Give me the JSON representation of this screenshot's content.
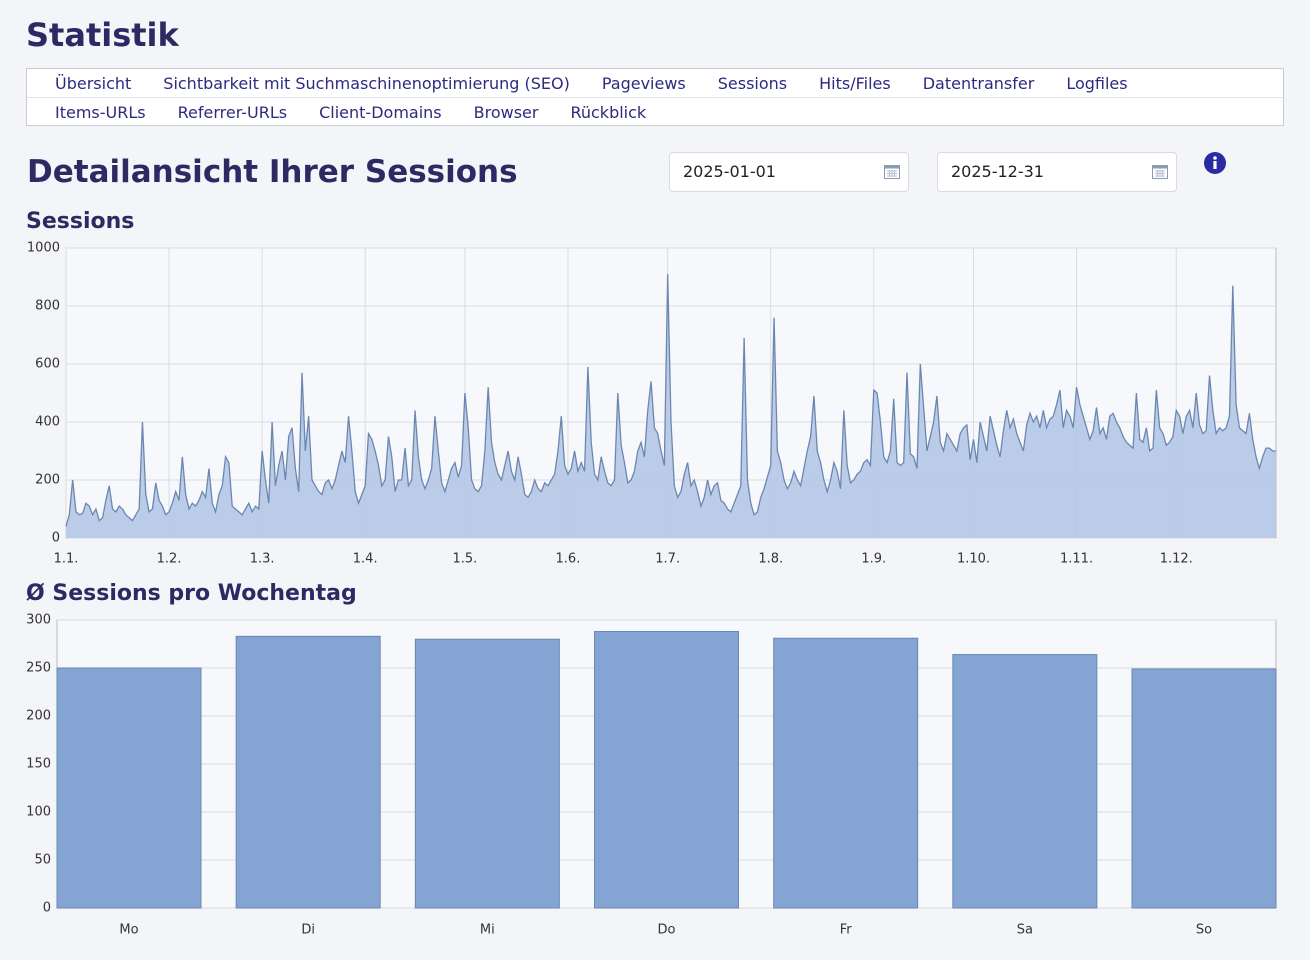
{
  "header": {
    "title": "Statistik"
  },
  "nav": {
    "rows": [
      [
        "Übersicht",
        "Sichtbarkeit mit Suchmaschinenoptimierung (SEO)",
        "Pageviews",
        "Sessions",
        "Hits/Files",
        "Datentransfer",
        "Logfiles"
      ],
      [
        "Items-URLs",
        "Referrer-URLs",
        "Client-Domains",
        "Browser",
        "Rückblick"
      ]
    ]
  },
  "heading": "Detailansicht Ihrer Sessions",
  "date_from": "2025-01-01",
  "date_to": "2025-12-31",
  "chart_data": [
    {
      "type": "area",
      "title": "Sessions",
      "color": "#b4c7e7",
      "line_color": "#6b87b0",
      "grid": true,
      "xlim": [
        1,
        365
      ],
      "xticks": [
        {
          "value": 1,
          "label": "1.1."
        },
        {
          "value": 32,
          "label": "1.2."
        },
        {
          "value": 60,
          "label": "1.3."
        },
        {
          "value": 91,
          "label": "1.4."
        },
        {
          "value": 121,
          "label": "1.5."
        },
        {
          "value": 152,
          "label": "1.6."
        },
        {
          "value": 182,
          "label": "1.7."
        },
        {
          "value": 213,
          "label": "1.8."
        },
        {
          "value": 244,
          "label": "1.9."
        },
        {
          "value": 274,
          "label": "1.10."
        },
        {
          "value": 305,
          "label": "1.11."
        },
        {
          "value": 335,
          "label": "1.12."
        }
      ],
      "ylim": [
        0,
        1000
      ],
      "yticks": [
        0,
        200,
        400,
        600,
        800,
        1000
      ],
      "x": [
        1,
        2,
        3,
        4,
        5,
        6,
        7,
        8,
        9,
        10,
        11,
        12,
        13,
        14,
        15,
        16,
        17,
        18,
        19,
        20,
        21,
        22,
        23,
        24,
        25,
        26,
        27,
        28,
        29,
        30,
        31,
        32,
        33,
        34,
        35,
        36,
        37,
        38,
        39,
        40,
        41,
        42,
        43,
        44,
        45,
        46,
        47,
        48,
        49,
        50,
        51,
        52,
        53,
        54,
        55,
        56,
        57,
        58,
        59,
        60,
        61,
        62,
        63,
        64,
        65,
        66,
        67,
        68,
        69,
        70,
        71,
        72,
        73,
        74,
        75,
        76,
        77,
        78,
        79,
        80,
        81,
        82,
        83,
        84,
        85,
        86,
        87,
        88,
        89,
        90,
        91,
        92,
        93,
        94,
        95,
        96,
        97,
        98,
        99,
        100,
        101,
        102,
        103,
        104,
        105,
        106,
        107,
        108,
        109,
        110,
        111,
        112,
        113,
        114,
        115,
        116,
        117,
        118,
        119,
        120,
        121,
        122,
        123,
        124,
        125,
        126,
        127,
        128,
        129,
        130,
        131,
        132,
        133,
        134,
        135,
        136,
        137,
        138,
        139,
        140,
        141,
        142,
        143,
        144,
        145,
        146,
        147,
        148,
        149,
        150,
        151,
        152,
        153,
        154,
        155,
        156,
        157,
        158,
        159,
        160,
        161,
        162,
        163,
        164,
        165,
        166,
        167,
        168,
        169,
        170,
        171,
        172,
        173,
        174,
        175,
        176,
        177,
        178,
        179,
        180,
        181,
        182,
        183,
        184,
        185,
        186,
        187,
        188,
        189,
        190,
        191,
        192,
        193,
        194,
        195,
        196,
        197,
        198,
        199,
        200,
        201,
        202,
        203,
        204,
        205,
        206,
        207,
        208,
        209,
        210,
        211,
        212,
        213,
        214,
        215,
        216,
        217,
        218,
        219,
        220,
        221,
        222,
        223,
        224,
        225,
        226,
        227,
        228,
        229,
        230,
        231,
        232,
        233,
        234,
        235,
        236,
        237,
        238,
        239,
        240,
        241,
        242,
        243,
        244,
        245,
        246,
        247,
        248,
        249,
        250,
        251,
        252,
        253,
        254,
        255,
        256,
        257,
        258,
        259,
        260,
        261,
        262,
        263,
        264,
        265,
        266,
        267,
        268,
        269,
        270,
        271,
        272,
        273,
        274,
        275,
        276,
        277,
        278,
        279,
        280,
        281,
        282,
        283,
        284,
        285,
        286,
        287,
        288,
        289,
        290,
        291,
        292,
        293,
        294,
        295,
        296,
        297,
        298,
        299,
        300,
        301,
        302,
        303,
        304,
        305,
        306,
        307,
        308,
        309,
        310,
        311,
        312,
        313,
        314,
        315,
        316,
        317,
        318,
        319,
        320,
        321,
        322,
        323,
        324,
        325,
        326,
        327,
        328,
        329,
        330,
        331,
        332,
        333,
        334,
        335,
        336,
        337,
        338,
        339,
        340,
        341,
        342,
        343,
        344,
        345,
        346,
        347,
        348,
        349,
        350,
        351,
        352,
        353,
        354,
        355,
        356,
        357,
        358,
        359,
        360,
        361,
        362,
        363,
        364,
        365
      ],
      "values": [
        40,
        80,
        200,
        90,
        80,
        85,
        120,
        110,
        80,
        100,
        60,
        70,
        130,
        180,
        100,
        90,
        110,
        100,
        80,
        70,
        60,
        80,
        100,
        400,
        150,
        90,
        100,
        190,
        130,
        110,
        80,
        90,
        120,
        160,
        130,
        280,
        150,
        100,
        120,
        110,
        130,
        160,
        140,
        240,
        120,
        90,
        150,
        180,
        280,
        260,
        110,
        100,
        90,
        80,
        100,
        120,
        90,
        110,
        100,
        300,
        200,
        120,
        400,
        180,
        250,
        300,
        200,
        350,
        380,
        240,
        160,
        570,
        300,
        420,
        200,
        180,
        160,
        150,
        190,
        200,
        170,
        200,
        250,
        300,
        260,
        420,
        300,
        160,
        120,
        150,
        180,
        360,
        340,
        300,
        250,
        180,
        200,
        350,
        280,
        160,
        200,
        200,
        310,
        180,
        200,
        440,
        280,
        200,
        170,
        200,
        240,
        420,
        300,
        190,
        160,
        200,
        240,
        260,
        210,
        250,
        500,
        380,
        200,
        170,
        160,
        180,
        300,
        520,
        330,
        260,
        220,
        200,
        250,
        300,
        230,
        200,
        280,
        220,
        150,
        140,
        160,
        200,
        170,
        160,
        190,
        180,
        200,
        220,
        300,
        420,
        250,
        220,
        240,
        300,
        230,
        260,
        230,
        590,
        330,
        220,
        200,
        280,
        230,
        190,
        180,
        200,
        500,
        320,
        260,
        190,
        200,
        230,
        300,
        330,
        280,
        440,
        540,
        380,
        360,
        300,
        250,
        910,
        400,
        180,
        140,
        160,
        220,
        260,
        180,
        200,
        160,
        110,
        140,
        200,
        150,
        180,
        190,
        130,
        120,
        100,
        90,
        120,
        150,
        180,
        690,
        200,
        120,
        80,
        90,
        140,
        170,
        210,
        250,
        760,
        300,
        260,
        200,
        170,
        190,
        230,
        200,
        180,
        240,
        300,
        350,
        490,
        300,
        260,
        200,
        160,
        200,
        260,
        230,
        170,
        440,
        250,
        190,
        200,
        220,
        230,
        260,
        270,
        250,
        510,
        500,
        400,
        280,
        260,
        300,
        480,
        260,
        250,
        260,
        570,
        290,
        280,
        240,
        600,
        450,
        300,
        350,
        400,
        490,
        330,
        300,
        360,
        340,
        320,
        300,
        360,
        380,
        390,
        270,
        340,
        260,
        400,
        350,
        300,
        420,
        370,
        320,
        280,
        370,
        440,
        380,
        410,
        360,
        330,
        300,
        390,
        430,
        400,
        420,
        380,
        440,
        380,
        410,
        420,
        460,
        510,
        380,
        440,
        420,
        380,
        520,
        460,
        420,
        380,
        340,
        370,
        450,
        360,
        380,
        340,
        420,
        430,
        400,
        380,
        350,
        330,
        320,
        310,
        500,
        340,
        330,
        380,
        300,
        310,
        510,
        380,
        360,
        320,
        330,
        350,
        440,
        420,
        360,
        420,
        440,
        380,
        500,
        390,
        360,
        370,
        560,
        440,
        360,
        380,
        370,
        380,
        420,
        870,
        460,
        380,
        370,
        360,
        430,
        340,
        280,
        240,
        280,
        310,
        310,
        300,
        300
      ]
    },
    {
      "type": "bar",
      "title": "Ø Sessions pro Wochentag",
      "color": "#84a5d3",
      "line_color": "#6b87b0",
      "grid": true,
      "categories": [
        "Mo",
        "Di",
        "Mi",
        "Do",
        "Fr",
        "Sa",
        "So"
      ],
      "values": [
        250,
        283,
        280,
        288,
        281,
        264,
        249
      ],
      "ylim": [
        0,
        300
      ],
      "yticks": [
        0,
        50,
        100,
        150,
        200,
        250,
        300
      ]
    }
  ]
}
